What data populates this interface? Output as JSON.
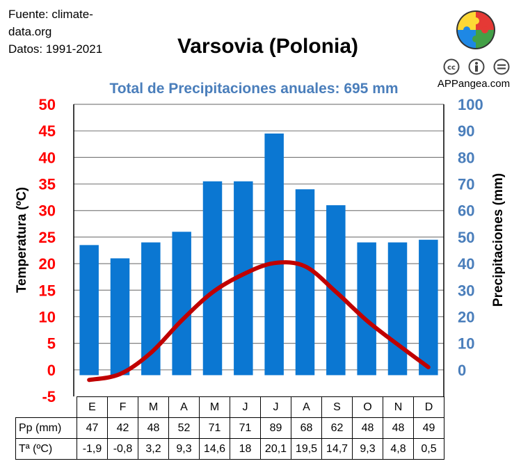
{
  "source": {
    "line1": "Fuente: climate-",
    "line2": "data.org",
    "line3": "Datos: 1991-2021"
  },
  "brand": "APPangea.com",
  "logo_icon": "puzzle-globe-icon",
  "license_icons": [
    "cc-icon",
    "attribution-icon",
    "noderivs-icon"
  ],
  "colors": {
    "bars": "#0b77d2",
    "temp_line": "#c00000",
    "left_axis": "#ff0000",
    "right_axis": "#4a7ebb",
    "grid": "#808080"
  },
  "chart_data": {
    "type": "bar",
    "title": "Varsovia (Polonia)",
    "subtitle": "Total de Precipitaciones anuales: 695 mm",
    "categories": [
      "E",
      "F",
      "M",
      "A",
      "M",
      "J",
      "J",
      "A",
      "S",
      "O",
      "N",
      "D"
    ],
    "series": [
      {
        "name": "Pp (mm)",
        "type": "bar",
        "axis": "right",
        "values": [
          47,
          42,
          48,
          52,
          71,
          71,
          89,
          68,
          62,
          48,
          48,
          49
        ]
      },
      {
        "name": "Tª (ºC)",
        "type": "line",
        "axis": "left",
        "values": [
          -1.9,
          -0.8,
          3.2,
          9.3,
          14.6,
          18,
          20.1,
          19.5,
          14.7,
          9.3,
          4.8,
          0.5
        ]
      }
    ],
    "ylabel": "Temperatura (ºC)",
    "y2label": "Precipitaciones (mm)",
    "ylim": [
      -5,
      50
    ],
    "y2lim": [
      -10,
      100
    ],
    "yticks": [
      -5,
      0,
      5,
      10,
      15,
      20,
      25,
      30,
      35,
      40,
      45,
      50
    ],
    "y2ticks": [
      0,
      10,
      20,
      30,
      40,
      50,
      60,
      70,
      80,
      90,
      100
    ],
    "grid": true
  },
  "table": {
    "pp_label": "Pp (mm)",
    "t_label": "Tª (ºC)",
    "pp": [
      "47",
      "42",
      "48",
      "52",
      "71",
      "71",
      "89",
      "68",
      "62",
      "48",
      "48",
      "49"
    ],
    "t": [
      "-1,9",
      "-0,8",
      "3,2",
      "9,3",
      "14,6",
      "18",
      "20,1",
      "19,5",
      "14,7",
      "9,3",
      "4,8",
      "0,5"
    ]
  }
}
